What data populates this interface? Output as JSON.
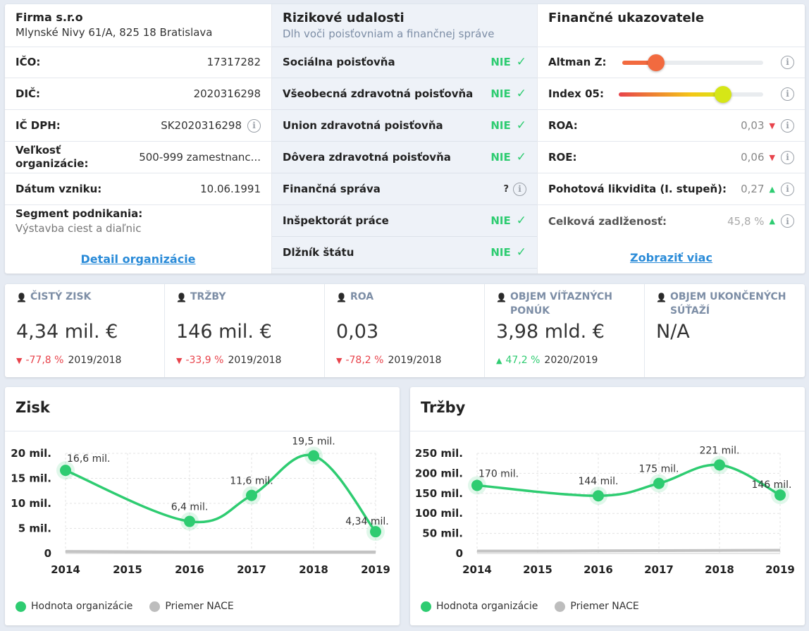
{
  "company": {
    "name": "Firma s.r.o",
    "address": "Mlynské Nivy 61/A, 825 18 Bratislava",
    "fields": [
      {
        "label": "IČO:",
        "value": "17317282",
        "info": false
      },
      {
        "label": "DIČ:",
        "value": "2020316298",
        "info": false
      },
      {
        "label": "IČ DPH:",
        "value": "SK2020316298",
        "info": true
      },
      {
        "label": "Veľkosť organizácie:",
        "value": "500-999 zamestnanc...",
        "info": false
      },
      {
        "label": "Dátum vzniku:",
        "value": "10.06.1991",
        "info": false
      }
    ],
    "segment_label": "Segment podnikania:",
    "segment_value": "Výstavba ciest a diaľnic",
    "detail_link": "Detail organizácie"
  },
  "risk": {
    "title": "Rizikové udalosti",
    "subtitle": "Dlh voči poisťovniam a finančnej správe",
    "items": [
      {
        "label": "Sociálna poisťovňa",
        "status": "NIE",
        "icon": "check-icon"
      },
      {
        "label": "Všeobecná zdravotná poisťovňa",
        "status": "NIE",
        "icon": "check-icon"
      },
      {
        "label": "Union zdravotná poisťovňa",
        "status": "NIE",
        "icon": "check-icon"
      },
      {
        "label": "Dôvera zdravotná poisťovňa",
        "status": "NIE",
        "icon": "check-icon"
      },
      {
        "label": "Finančná správa",
        "status": "?",
        "icon": "info-icon"
      },
      {
        "label": "Inšpektorát práce",
        "status": "NIE",
        "icon": "check-icon"
      },
      {
        "label": "Dlžník štátu",
        "status": "NIE",
        "icon": "check-icon"
      }
    ]
  },
  "finance": {
    "title": "Finančné ukazovatele",
    "sliders": [
      {
        "label": "Altman Z:",
        "level": 0.24,
        "knob_color": "#f26a3f",
        "fill": "#f26a3f"
      },
      {
        "label": "Index 05:",
        "level": 0.72,
        "knob_color": "#d6e617",
        "fill": "linear-gradient(90deg,#e8434b,#f4c717 70%,#d6e617)"
      }
    ],
    "ratios": [
      {
        "label": "ROA:",
        "value": "0,03",
        "trend": "down"
      },
      {
        "label": "ROE:",
        "value": "0,06",
        "trend": "down"
      },
      {
        "label": "Pohotová likvidita (I. stupeň):",
        "value": "0,27",
        "trend": "up"
      },
      {
        "label": "Celková zadlženosť:",
        "value": "45,8 %",
        "trend": "up"
      }
    ],
    "more_link": "Zobraziť viac"
  },
  "kpis": [
    {
      "title": "ČISTÝ ZISK",
      "value": "4,34 mil. €",
      "delta": "-77,8 %",
      "period": "2019/2018",
      "trend": "down"
    },
    {
      "title": "TRŽBY",
      "value": "146 mil. €",
      "delta": "-33,9 %",
      "period": "2019/2018",
      "trend": "down"
    },
    {
      "title": "ROA",
      "value": "0,03",
      "delta": "-78,2 %",
      "period": "2019/2018",
      "trend": "down"
    },
    {
      "title": "OBJEM VÍŤAZNÝCH PONÚK",
      "value": "3,98 mld. €",
      "delta": "47,2 %",
      "period": "2020/2019",
      "trend": "up"
    },
    {
      "title": "OBJEM UKONČENÝCH SÚŤAŽÍ",
      "value": "N/A",
      "delta": "",
      "period": "",
      "trend": "none"
    }
  ],
  "colors": {
    "accent": "#2ecc71",
    "negative": "#e8434b",
    "link": "#2a8bd8",
    "nace": "#bdbdbd"
  },
  "chart_data": [
    {
      "type": "line",
      "title": "Zisk",
      "x": [
        2014,
        2015,
        2016,
        2017,
        2018,
        2019
      ],
      "x_tick_labels": [
        "2014",
        "2015",
        "2016",
        "2017",
        "2018",
        "2019"
      ],
      "ylim": [
        0,
        20
      ],
      "y_ticks": [
        0,
        5,
        10,
        15,
        20
      ],
      "y_tick_labels": [
        "0",
        "5 mil.",
        "10 mil.",
        "15 mil.",
        "20 mil."
      ],
      "grid": true,
      "legend": "bottom-left",
      "series": [
        {
          "name": "Hodnota organizácie",
          "x": [
            2014,
            2016,
            2017,
            2018,
            2019
          ],
          "values": [
            16.6,
            6.4,
            11.6,
            19.5,
            4.34
          ],
          "labels": [
            "16,6 mil.",
            "6,4 mil.",
            "11,6 mil.",
            "19,5 mil.",
            "4,34 mil."
          ],
          "color": "#2ecc71"
        },
        {
          "name": "Priemer NACE",
          "x": [
            2014,
            2015,
            2016,
            2017,
            2018,
            2019
          ],
          "values": [
            0.4,
            0.35,
            0.3,
            0.3,
            0.3,
            0.3
          ],
          "color": "#bdbdbd"
        }
      ]
    },
    {
      "type": "line",
      "title": "Tržby",
      "x": [
        2014,
        2015,
        2016,
        2017,
        2018,
        2019
      ],
      "x_tick_labels": [
        "2014",
        "2015",
        "2016",
        "2017",
        "2018",
        "2019"
      ],
      "ylim": [
        0,
        250
      ],
      "y_ticks": [
        0,
        50,
        100,
        150,
        200,
        250
      ],
      "y_tick_labels": [
        "0",
        "50 mil.",
        "100 mil.",
        "150 mil.",
        "200 mil.",
        "250 mil."
      ],
      "grid": true,
      "legend": "bottom-left",
      "series": [
        {
          "name": "Hodnota organizácie",
          "x": [
            2014,
            2016,
            2017,
            2018,
            2019
          ],
          "values": [
            170,
            144,
            175,
            221,
            146
          ],
          "labels": [
            "170 mil.",
            "144 mil.",
            "175 mil.",
            "221 mil.",
            "146 mil."
          ],
          "color": "#2ecc71"
        },
        {
          "name": "Priemer NACE",
          "x": [
            2014,
            2015,
            2016,
            2017,
            2018,
            2019
          ],
          "values": [
            6,
            6,
            6.5,
            7,
            7.5,
            8
          ],
          "color": "#bdbdbd"
        }
      ]
    }
  ]
}
